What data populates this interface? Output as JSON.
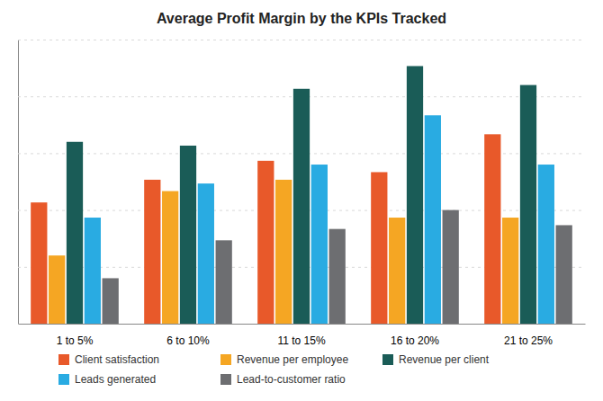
{
  "chart_data": {
    "type": "bar",
    "title": "Average Profit Margin by the KPIs Tracked",
    "categories": [
      "1 to 5%",
      "6 to 10%",
      "11 to 15%",
      "16 to 20%",
      "21 to 25%"
    ],
    "series": [
      {
        "name": "Client satisfaction",
        "color": "#E8592A",
        "values": [
          32,
          38,
          43,
          40,
          50
        ]
      },
      {
        "name": "Revenue per employee",
        "color": "#F5A623",
        "values": [
          18,
          35,
          38,
          28,
          28
        ]
      },
      {
        "name": "Revenue per client",
        "color": "#1A5C57",
        "values": [
          48,
          47,
          62,
          68,
          63
        ]
      },
      {
        "name": "Leads generated",
        "color": "#29ABE2",
        "values": [
          28,
          37,
          42,
          55,
          42
        ]
      },
      {
        "name": "Lead-to-customer ratio",
        "color": "#6D6E71",
        "values": [
          12,
          22,
          25,
          30,
          26
        ]
      }
    ],
    "ylim": [
      0,
      75
    ],
    "yticks": [
      0,
      15,
      30,
      45,
      60,
      75
    ],
    "grid": true,
    "tick_labels": "x",
    "legend": "bottom"
  }
}
